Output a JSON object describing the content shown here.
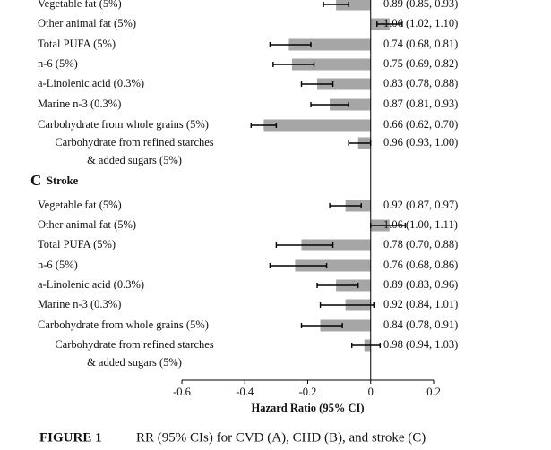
{
  "chart_data": [
    {
      "type": "bar",
      "orientation": "horizontal",
      "color": "#a6a6a6",
      "categories": [
        "Vegetable fat (5%)",
        "Other animal fat (5%)",
        "Total PUFA (5%)",
        "n-6 (5%)",
        "a-Linolenic acid (0.3%)",
        "Marine n-3 (0.3%)",
        "Carbohydrate from whole grains (5%)",
        [
          "Carbohydrate from refined starches",
          "& added sugars (5%)"
        ]
      ],
      "values": [
        -0.11,
        0.06,
        -0.26,
        -0.25,
        -0.17,
        -0.13,
        -0.34,
        -0.04
      ],
      "ci_low": [
        -0.15,
        0.02,
        -0.32,
        -0.31,
        -0.22,
        -0.19,
        -0.38,
        -0.07
      ],
      "ci_high": [
        -0.07,
        0.1,
        -0.19,
        -0.18,
        -0.12,
        -0.07,
        -0.3,
        0.0
      ],
      "annotations": [
        "0.89 (0.85, 0.93)",
        "1.06 (1.02, 1.10)",
        "0.74 (0.68, 0.81)",
        "0.75 (0.69, 0.82)",
        "0.83 (0.78, 0.88)",
        "0.87 (0.81, 0.93)",
        "0.66 (0.62, 0.70)",
        "0.96 (0.93, 1.00)"
      ],
      "xlim": [
        -0.6,
        0.2
      ]
    },
    {
      "type": "bar",
      "orientation": "horizontal",
      "color": "#a6a6a6",
      "panel_label": "C",
      "title": "Stroke",
      "categories": [
        "Vegetable fat (5%)",
        "Other animal fat (5%)",
        "Total PUFA (5%)",
        "n-6 (5%)",
        "a-Linolenic acid  (0.3%)",
        "Marine n-3 (0.3%)",
        "Carbohydrate from whole grains (5%)",
        [
          "Carbohydrate from refined starches",
          "& added sugars (5%)"
        ]
      ],
      "values": [
        -0.08,
        0.06,
        -0.22,
        -0.24,
        -0.11,
        -0.08,
        -0.16,
        -0.02
      ],
      "ci_low": [
        -0.13,
        0.0,
        -0.3,
        -0.32,
        -0.17,
        -0.16,
        -0.22,
        -0.06
      ],
      "ci_high": [
        -0.03,
        0.11,
        -0.12,
        -0.14,
        -0.04,
        0.01,
        -0.09,
        0.03
      ],
      "annotations": [
        "0.92 (0.87, 0.97)",
        "1.06 (1.00, 1.11)",
        "0.78 (0.70, 0.88)",
        "0.76 (0.68, 0.86)",
        "0.89 (0.83, 0.96)",
        "0.92 (0.84, 1.01)",
        "0.84 (0.78, 0.91)",
        "0.98 (0.94, 1.03)"
      ],
      "xlim": [
        -0.6,
        0.2
      ],
      "xticks": [
        -0.6,
        -0.4,
        -0.2,
        0,
        0.2
      ],
      "xlabel": "Hazard Ratio (95% CI)"
    }
  ],
  "caption": {
    "label": "FIGURE 1",
    "text": "RR (95% CIs) for CVD (A), CHD (B), and stroke (C)"
  }
}
